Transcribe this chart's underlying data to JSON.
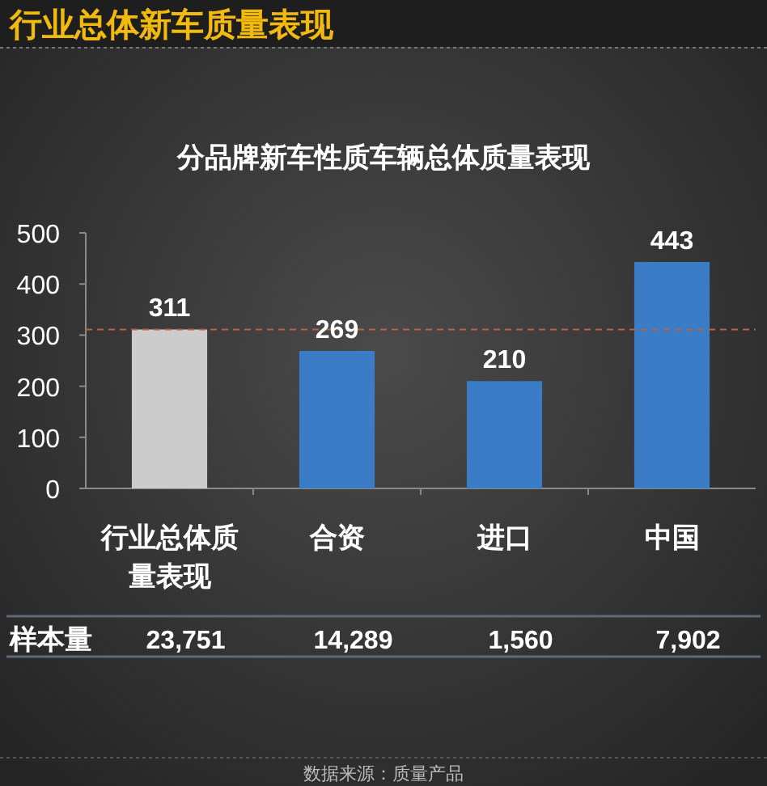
{
  "chart_data": {
    "type": "bar",
    "title": "行业总体新车质量表现",
    "subtitle": "分品牌新车性质车辆总体质量表现",
    "categories": [
      "行业总体质量表现",
      "合资",
      "进口",
      "中国"
    ],
    "values": [
      311,
      269,
      210,
      443
    ],
    "colors": [
      "#cccccc",
      "#3a7cc6",
      "#3a7cc6",
      "#3a7cc6"
    ],
    "ylim": [
      0,
      500
    ],
    "yticks": [
      0,
      100,
      200,
      300,
      400,
      500
    ],
    "grid": false,
    "data_labels": true,
    "ref_lines": [
      {
        "axis": "y",
        "value": 311,
        "color": "#b8653f",
        "line_style": "dashed"
      }
    ],
    "annotations": [
      "样本量",
      "23,751",
      "14,289",
      "1,560",
      "7,902",
      "数据来源：质量产品"
    ]
  }
}
